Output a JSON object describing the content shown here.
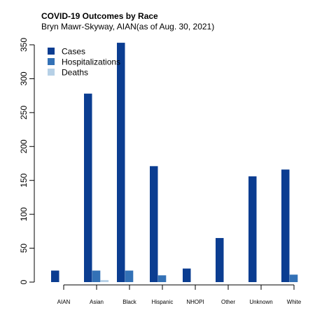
{
  "chart_data": {
    "type": "bar",
    "title": "COVID-19 Outcomes by Race",
    "subtitle": "Bryn Mawr-Skyway, AIAN(as of Aug. 30, 2021)",
    "xlabel": "",
    "ylabel": "",
    "categories": [
      "AIAN",
      "Asian",
      "Black",
      "Hispanic",
      "NHOPI",
      "Other",
      "Unknown",
      "White"
    ],
    "series": [
      {
        "name": "Cases",
        "color": "#0b3d91",
        "values": [
          17,
          278,
          353,
          171,
          20,
          65,
          156,
          166
        ]
      },
      {
        "name": "Hospitalizations",
        "color": "#3371b6",
        "values": [
          0,
          17,
          17,
          10,
          0,
          0,
          0,
          11
        ]
      },
      {
        "name": "Deaths",
        "color": "#b6d0e6",
        "values": [
          0,
          3,
          0,
          0,
          0,
          0,
          0,
          0
        ]
      }
    ],
    "ylim": [
      0,
      350
    ],
    "yticks": [
      0,
      50,
      100,
      150,
      200,
      250,
      300,
      350
    ],
    "grid": false,
    "legend": "top-left"
  }
}
